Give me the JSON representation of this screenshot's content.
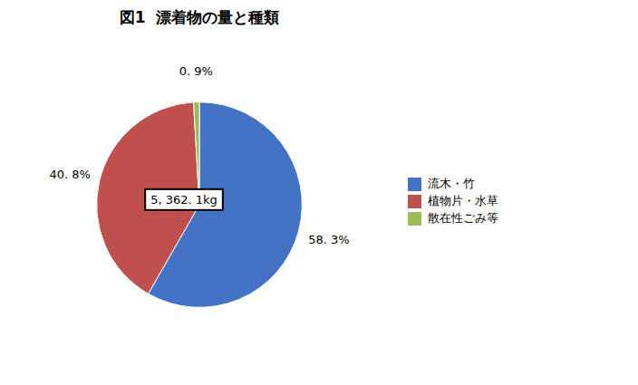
{
  "chart_data": {
    "type": "pie",
    "title": "図1  漂着物の量と種類",
    "categories": [
      "流木・竹",
      "植物片・水草",
      "散在性ごみ等"
    ],
    "values": [
      58.3,
      40.8,
      0.9
    ],
    "value_labels": [
      "58. 3%",
      "40. 8%",
      "0. 9%"
    ],
    "colors": [
      "#4472C4",
      "#C0504D",
      "#9BBB59"
    ],
    "annotations": [
      "5, 362. 1kg"
    ],
    "data_labels": true,
    "legend": "right"
  }
}
